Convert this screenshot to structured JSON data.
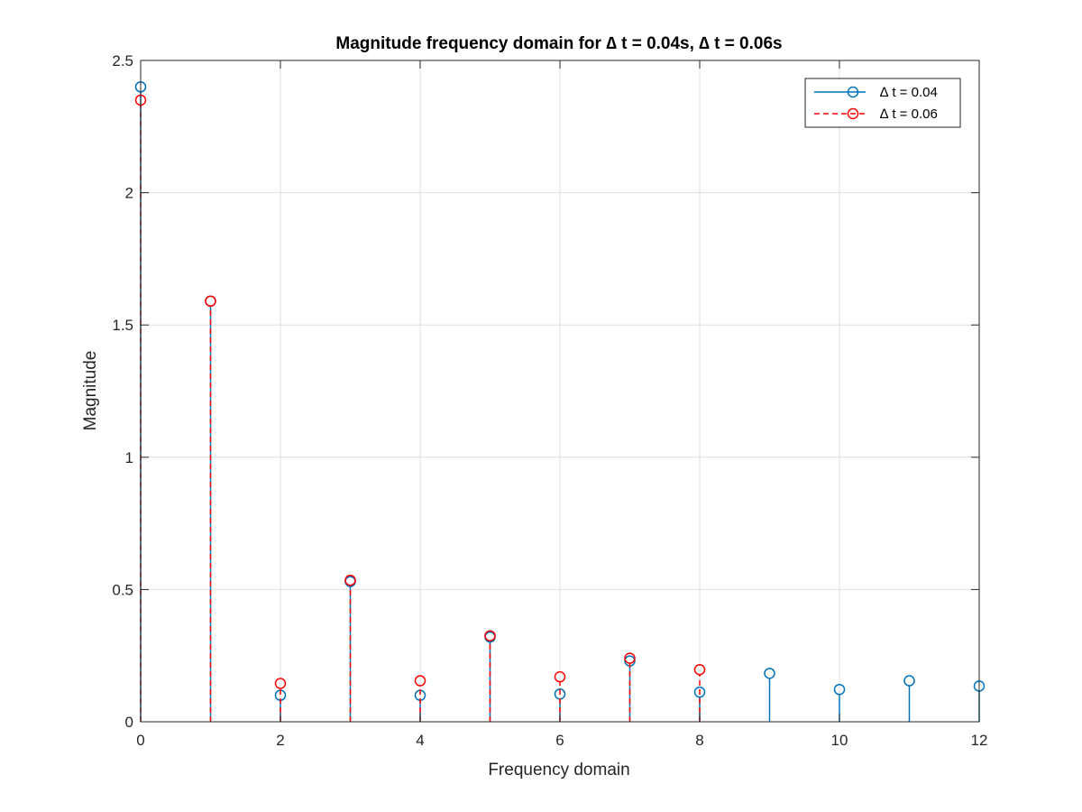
{
  "chart_data": {
    "type": "stem",
    "title": "Magnitude frequency domain for ∆ t = 0.04s, ∆ t = 0.06s",
    "xlabel": "Frequency domain",
    "ylabel": "Magnitude",
    "xlim": [
      0,
      12
    ],
    "ylim": [
      0,
      2.5
    ],
    "xticks": [
      "0",
      "2",
      "4",
      "6",
      "8",
      "10",
      "12"
    ],
    "yticks": [
      "0",
      "0.5",
      "1",
      "1.5",
      "2",
      "2.5"
    ],
    "grid": true,
    "legend_position": "top-right",
    "series": [
      {
        "name": "∆ t = 0.04",
        "color": "#0072BD",
        "line_style": "solid",
        "marker": "circle",
        "x": [
          0,
          1,
          2,
          3,
          4,
          5,
          6,
          7,
          8,
          9,
          10,
          11,
          12
        ],
        "values": [
          2.4,
          1.59,
          0.1,
          0.53,
          0.1,
          0.32,
          0.105,
          0.23,
          0.112,
          0.183,
          0.122,
          0.155,
          0.135
        ]
      },
      {
        "name": "∆ t = 0.06",
        "color": "#FF0000",
        "line_style": "dashed",
        "marker": "circle",
        "x": [
          0,
          1,
          2,
          3,
          4,
          5,
          6,
          7,
          8
        ],
        "values": [
          2.35,
          1.59,
          0.145,
          0.535,
          0.155,
          0.325,
          0.17,
          0.24,
          0.197
        ]
      }
    ]
  }
}
